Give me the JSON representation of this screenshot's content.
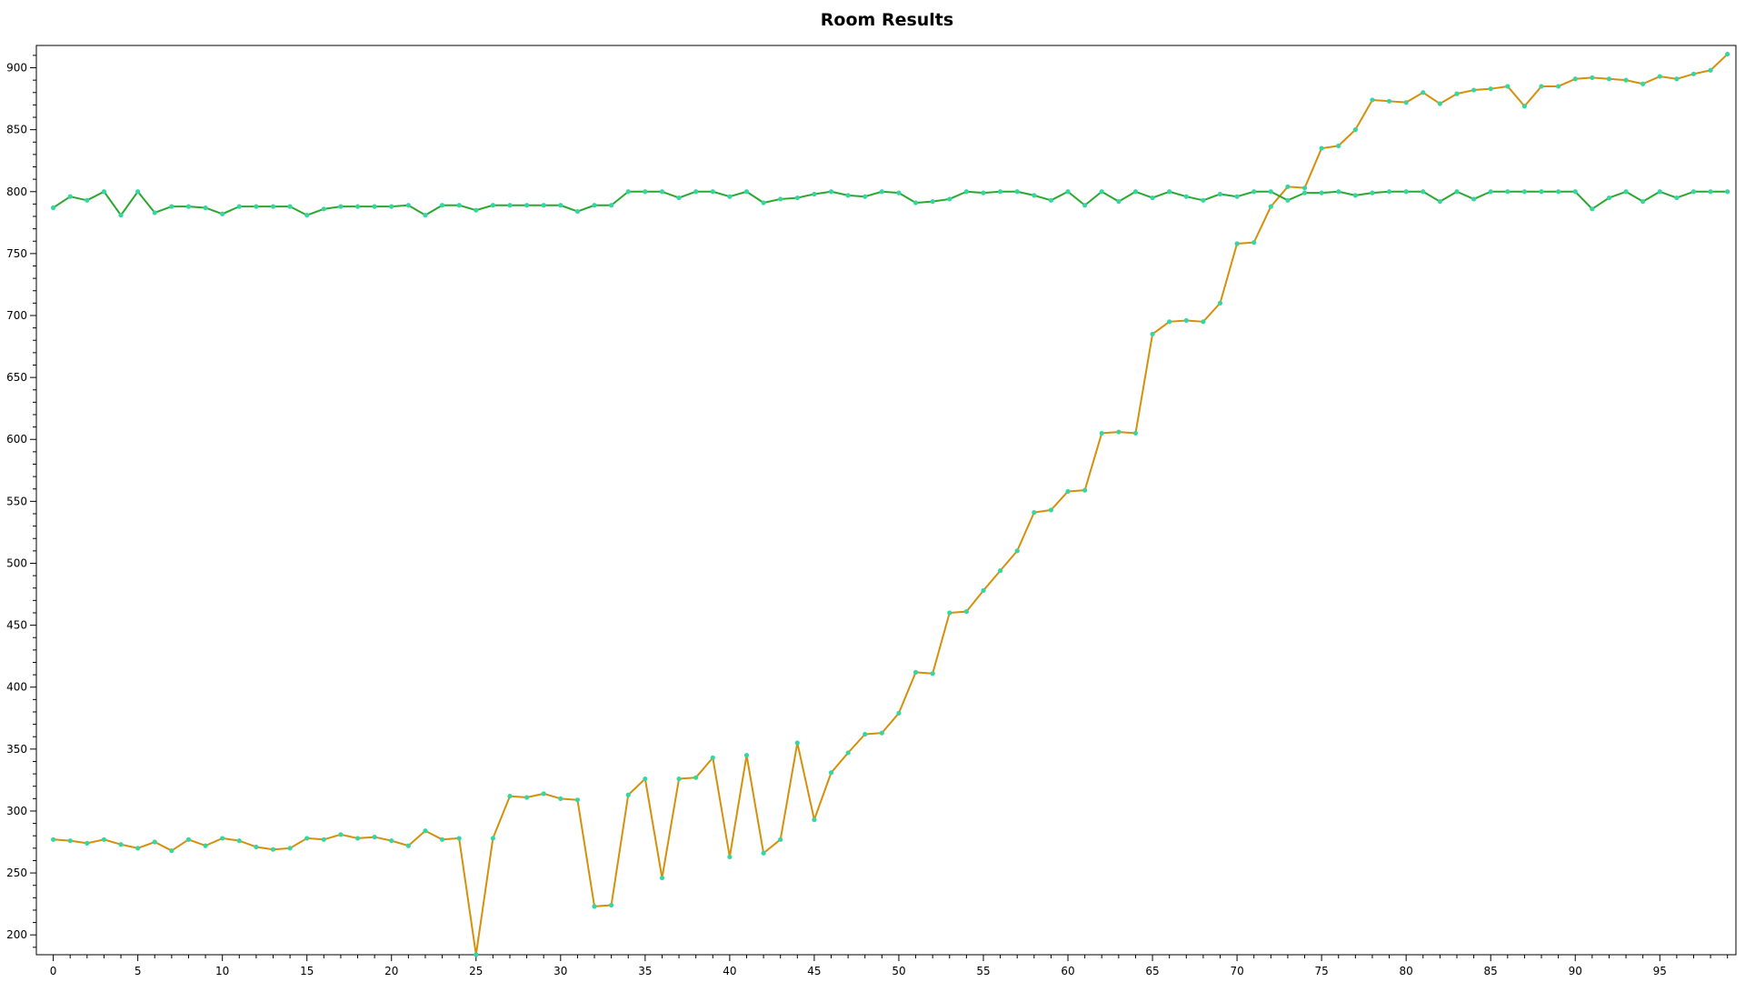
{
  "chart_data": {
    "type": "line",
    "title": "Room Results",
    "xlabel": "",
    "ylabel": "",
    "xlim": [
      -1,
      99.5
    ],
    "ylim": [
      184,
      918
    ],
    "x_ticks": [
      0,
      5,
      10,
      15,
      20,
      25,
      30,
      35,
      40,
      45,
      50,
      55,
      60,
      65,
      70,
      75,
      80,
      85,
      90,
      95
    ],
    "y_ticks": [
      200,
      250,
      300,
      350,
      400,
      450,
      500,
      550,
      600,
      650,
      700,
      750,
      800,
      850,
      900
    ],
    "grid": false,
    "legend": "none",
    "x": [
      0,
      1,
      2,
      3,
      4,
      5,
      6,
      7,
      8,
      9,
      10,
      11,
      12,
      13,
      14,
      15,
      16,
      17,
      18,
      19,
      20,
      21,
      22,
      23,
      24,
      25,
      26,
      27,
      28,
      29,
      30,
      31,
      32,
      33,
      34,
      35,
      36,
      37,
      38,
      39,
      40,
      41,
      42,
      43,
      44,
      45,
      46,
      47,
      48,
      49,
      50,
      51,
      52,
      53,
      54,
      55,
      56,
      57,
      58,
      59,
      60,
      61,
      62,
      63,
      64,
      65,
      66,
      67,
      68,
      69,
      70,
      71,
      72,
      73,
      74,
      75,
      76,
      77,
      78,
      79,
      80,
      81,
      82,
      83,
      84,
      85,
      86,
      87,
      88,
      89,
      90,
      91,
      92,
      93,
      94,
      95,
      96,
      97,
      98,
      99
    ],
    "series": [
      {
        "color": "#d4900a",
        "values": [
          277,
          276,
          274,
          277,
          273,
          270,
          275,
          268,
          277,
          272,
          278,
          276,
          271,
          269,
          270,
          278,
          277,
          281,
          278,
          279,
          276,
          272,
          284,
          277,
          278,
          184,
          278,
          312,
          311,
          314,
          310,
          309,
          223,
          224,
          313,
          326,
          246,
          326,
          327,
          343,
          263,
          345,
          266,
          277,
          355,
          293,
          331,
          347,
          362,
          363,
          379,
          412,
          411,
          460,
          461,
          478,
          494,
          510,
          541,
          543,
          558,
          559,
          605,
          606,
          605,
          685,
          695,
          696,
          695,
          710,
          758,
          759,
          788,
          804,
          803,
          835,
          837,
          850,
          874,
          873,
          872,
          880,
          871,
          879,
          882,
          883,
          885,
          869,
          885,
          885,
          891,
          892,
          891,
          890,
          887,
          893,
          891,
          895,
          898,
          911
        ]
      },
      {
        "color": "#2aa82e",
        "values": [
          787,
          796,
          793,
          800,
          781,
          800,
          783,
          788,
          788,
          787,
          782,
          788,
          788,
          788,
          788,
          781,
          786,
          788,
          788,
          788,
          788,
          789,
          781,
          789,
          789,
          785,
          789,
          789,
          789,
          789,
          789,
          784,
          789,
          789,
          800,
          800,
          800,
          795,
          800,
          800,
          796,
          800,
          791,
          794,
          795,
          798,
          800,
          797,
          796,
          800,
          799,
          791,
          792,
          794,
          800,
          799,
          800,
          800,
          797,
          793,
          800,
          789,
          800,
          792,
          800,
          795,
          800,
          796,
          793,
          798,
          796,
          800,
          800,
          793,
          799,
          799,
          800,
          797,
          799,
          800,
          800,
          800,
          792,
          800,
          794,
          800,
          800,
          800,
          800,
          800,
          800,
          786,
          795,
          800,
          792,
          800,
          795,
          800,
          800,
          800
        ]
      }
    ],
    "marker_color": "#35d6a4"
  }
}
